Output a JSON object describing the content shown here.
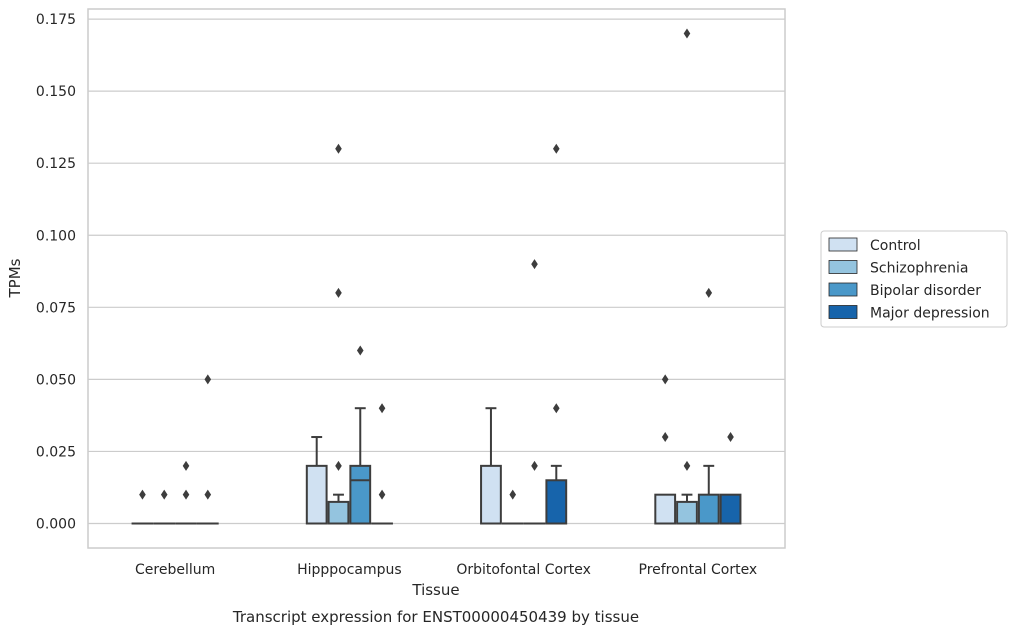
{
  "chart_data": {
    "type": "box",
    "caption": "Transcript expression for ENST00000450439 by tissue",
    "xlabel": "Tissue",
    "ylabel": "TPMs",
    "ylim": [
      -0.0085,
      0.1785
    ],
    "yticks": [
      "0.000",
      "0.025",
      "0.050",
      "0.075",
      "0.100",
      "0.125",
      "0.150",
      "0.175"
    ],
    "grid": true,
    "legend_position": "right",
    "categories": [
      "Cerebellum",
      "Hipppocampus",
      "Orbitofontal Cortex",
      "Prefrontal Cortex"
    ],
    "series": [
      {
        "name": "Control",
        "color": "#d0e1f2",
        "boxes": [
          {
            "q1": 0,
            "median": 0,
            "q3": 0,
            "whisker_low": 0,
            "whisker_high": 0,
            "outliers": [
              0.01
            ]
          },
          {
            "q1": 0,
            "median": 0,
            "q3": 0.02,
            "whisker_low": 0,
            "whisker_high": 0.03,
            "outliers": []
          },
          {
            "q1": 0,
            "median": 0,
            "q3": 0.02,
            "whisker_low": 0,
            "whisker_high": 0.04,
            "outliers": []
          },
          {
            "q1": 0,
            "median": 0,
            "q3": 0.01,
            "whisker_low": 0,
            "whisker_high": 0.01,
            "outliers": [
              0.03,
              0.05
            ]
          }
        ]
      },
      {
        "name": "Schizophrenia",
        "color": "#94c4df",
        "boxes": [
          {
            "q1": 0,
            "median": 0,
            "q3": 0,
            "whisker_low": 0,
            "whisker_high": 0,
            "outliers": [
              0.01
            ]
          },
          {
            "q1": 0,
            "median": 0,
            "q3": 0.0075,
            "whisker_low": 0,
            "whisker_high": 0.01,
            "outliers": [
              0.02,
              0.08,
              0.13
            ]
          },
          {
            "q1": 0,
            "median": 0,
            "q3": 0,
            "whisker_low": 0,
            "whisker_high": 0,
            "outliers": [
              0.01
            ]
          },
          {
            "q1": 0,
            "median": 0,
            "q3": 0.0075,
            "whisker_low": 0,
            "whisker_high": 0.01,
            "outliers": [
              0.02,
              0.17
            ]
          }
        ]
      },
      {
        "name": "Bipolar disorder",
        "color": "#4a98c9",
        "boxes": [
          {
            "q1": 0,
            "median": 0,
            "q3": 0,
            "whisker_low": 0,
            "whisker_high": 0,
            "outliers": [
              0.01,
              0.02
            ]
          },
          {
            "q1": 0,
            "median": 0.015,
            "q3": 0.02,
            "whisker_low": 0,
            "whisker_high": 0.04,
            "outliers": [
              0.06
            ]
          },
          {
            "q1": 0,
            "median": 0,
            "q3": 0,
            "whisker_low": 0,
            "whisker_high": 0,
            "outliers": [
              0.02,
              0.09
            ]
          },
          {
            "q1": 0,
            "median": 0,
            "q3": 0.01,
            "whisker_low": 0,
            "whisker_high": 0.02,
            "outliers": [
              0.08
            ]
          }
        ]
      },
      {
        "name": "Major depression",
        "color": "#1764ab",
        "boxes": [
          {
            "q1": 0,
            "median": 0,
            "q3": 0,
            "whisker_low": 0,
            "whisker_high": 0,
            "outliers": [
              0.01,
              0.05
            ]
          },
          {
            "q1": 0,
            "median": 0,
            "q3": 0,
            "whisker_low": 0,
            "whisker_high": 0,
            "outliers": [
              0.01,
              0.04
            ]
          },
          {
            "q1": 0,
            "median": 0,
            "q3": 0.015,
            "whisker_low": 0,
            "whisker_high": 0.02,
            "outliers": [
              0.04,
              0.13
            ]
          },
          {
            "q1": 0,
            "median": 0,
            "q3": 0.01,
            "whisker_low": 0,
            "whisker_high": 0.01,
            "outliers": [
              0.03
            ]
          }
        ]
      }
    ]
  }
}
